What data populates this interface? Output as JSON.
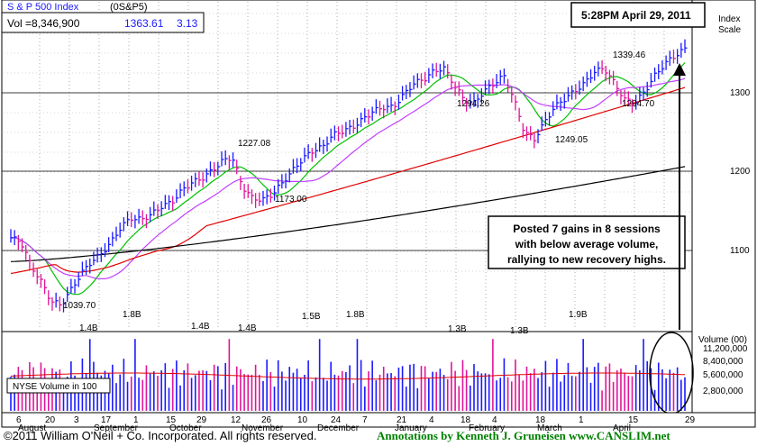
{
  "header": {
    "title": "S & P 500 Index",
    "symbol": "(0S&P5)",
    "vol_label": "Vol =8,346,900",
    "price": "1363.61",
    "change": "3.13"
  },
  "timestamp": "5:28PM April 29, 2011",
  "price_axis": {
    "title_line1": "Index",
    "title_line2": "Scale",
    "ticks": [
      "1300",
      "1200",
      "1100"
    ]
  },
  "volume_axis": {
    "title": "Volume (00)",
    "ticks": [
      "11,200,000",
      "8,400,000",
      "5,600,000",
      "2,800,000"
    ]
  },
  "volume_box_label": "NYSE Volume in 100",
  "note_lines": [
    "Posted 7 gains in 8 sessions",
    "with below average volume,",
    "rallying to new recovery highs."
  ],
  "date_days": [
    "6",
    "20",
    "3",
    "17",
    "1",
    "15",
    "29",
    "12",
    "26",
    "10",
    "24",
    "7",
    "21",
    "4",
    "18",
    "4",
    "18",
    "1",
    "15",
    "29"
  ],
  "date_months": [
    "August",
    "September",
    "October",
    "November",
    "December",
    "January",
    "February",
    "March",
    "April"
  ],
  "footer": {
    "copyright": "©2011 William O'Neil + Co. Incorporated. All rights reserved.",
    "annotations": "Annotations by Kenneth J. Gruneisen  www.CANSLIM.net"
  },
  "colors": {
    "up_bar": "#1a1aff",
    "down_bar": "#e0149b",
    "ma_10": "#00c000",
    "ma_21": "#c040ff",
    "ma_50": "#e00000",
    "ma_200": "#000000",
    "vol_avg": "#e00000"
  },
  "chart_data": {
    "type": "ohlc",
    "period": "daily, August 2010 - April 29, 2011",
    "price_labels": [
      {
        "text": "1039.70",
        "value": 1039.7
      },
      {
        "text": "1227.08",
        "value": 1227.08
      },
      {
        "text": "1173.00",
        "value": 1173.0
      },
      {
        "text": "1294.26",
        "value": 1294.26
      },
      {
        "text": "1249.05",
        "value": 1249.05
      },
      {
        "text": "1339.46",
        "value": 1339.46
      },
      {
        "text": "1294.70",
        "value": 1294.7
      }
    ],
    "volume_labels": [
      "1.4B",
      "1.8B",
      "1.4B",
      "1.4B",
      "1.5B",
      "1.8B",
      "1.3B",
      "1.3B",
      "1.9B"
    ],
    "close_series": [
      1125,
      1120,
      1090,
      1070,
      1045,
      1040,
      1060,
      1080,
      1095,
      1105,
      1120,
      1140,
      1150,
      1148,
      1155,
      1165,
      1170,
      1185,
      1195,
      1200,
      1210,
      1222,
      1227,
      1190,
      1175,
      1173,
      1180,
      1195,
      1210,
      1225,
      1235,
      1240,
      1255,
      1260,
      1265,
      1275,
      1285,
      1290,
      1290,
      1305,
      1320,
      1325,
      1335,
      1340,
      1320,
      1300,
      1295,
      1310,
      1320,
      1330,
      1300,
      1260,
      1249,
      1270,
      1290,
      1300,
      1310,
      1320,
      1335,
      1339,
      1320,
      1300,
      1295,
      1310,
      1330,
      1345,
      1355,
      1363.61
    ],
    "ma_50_start": 1080,
    "ma_50_end": 1315,
    "ma_200_start": 1095,
    "ma_200_end": 1215,
    "ylim": [
      1010,
      1380
    ]
  }
}
